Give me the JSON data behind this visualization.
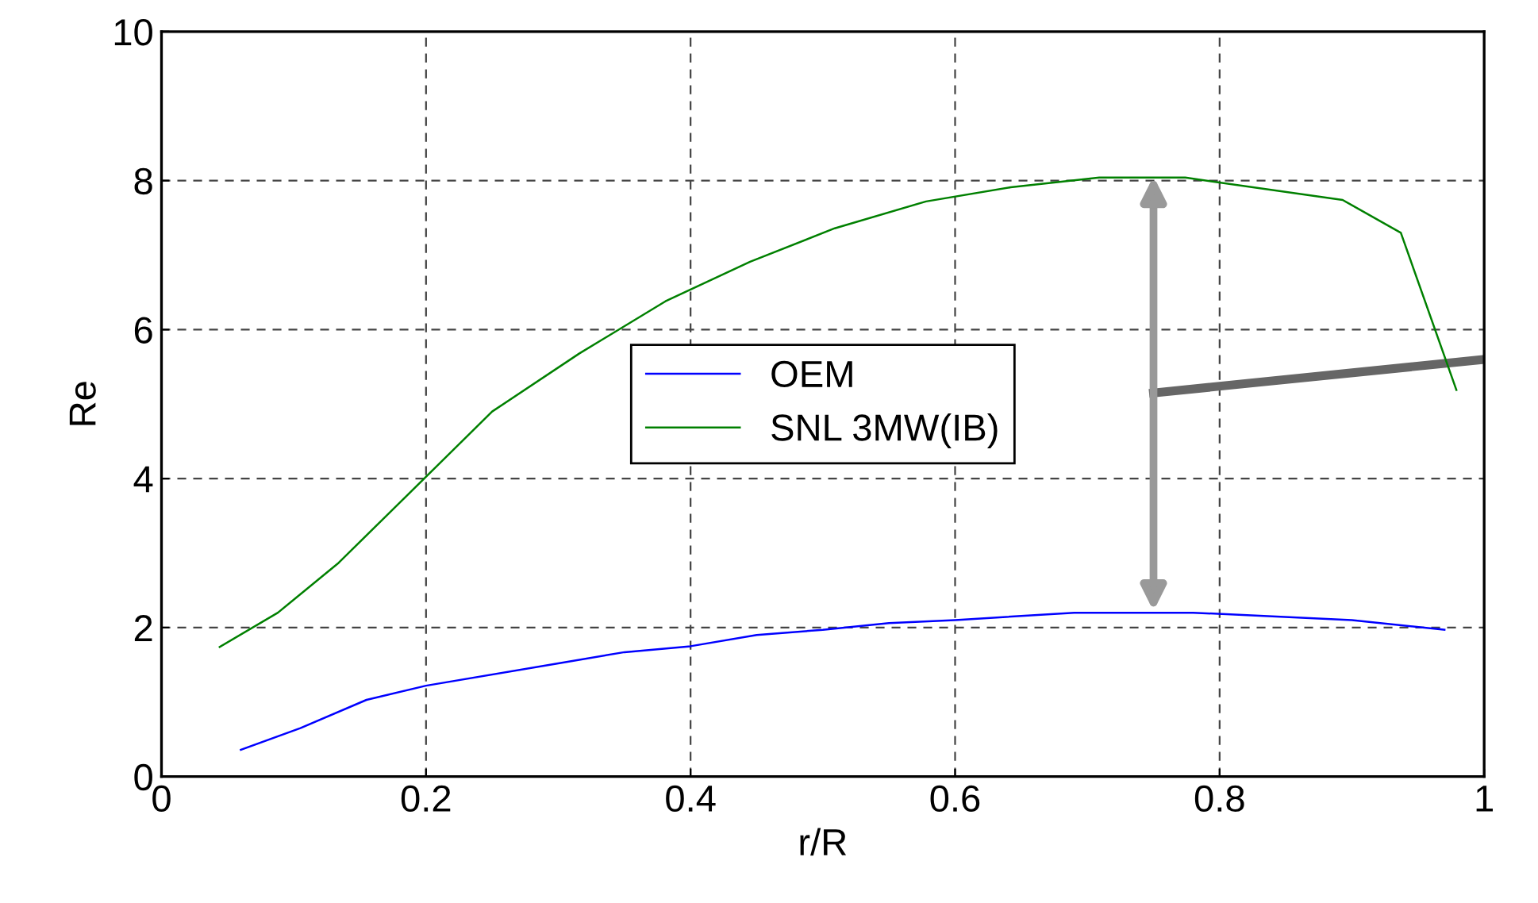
{
  "chart_data": {
    "type": "line",
    "xlabel": "r/R",
    "ylabel": "Re",
    "xlim": [
      0,
      1
    ],
    "xticks": [
      0,
      0.2,
      0.4,
      0.6,
      0.8,
      1
    ],
    "ylim": [
      0,
      10
    ],
    "yticks": [
      0,
      2,
      4,
      6,
      8,
      10
    ],
    "grid": true,
    "legend": "center",
    "line_style": "solid",
    "series": [
      {
        "name": "OEM",
        "color": "#0000ff",
        "x": [
          0.06,
          0.105,
          0.155,
          0.2,
          0.3,
          0.35,
          0.4,
          0.45,
          0.5,
          0.55,
          0.6,
          0.69,
          0.78,
          0.9,
          0.97
        ],
        "values": [
          0.36,
          0.65,
          1.03,
          1.22,
          1.52,
          1.67,
          1.75,
          1.9,
          1.97,
          2.06,
          2.1,
          2.2,
          2.2,
          2.1,
          1.97
        ]
      },
      {
        "color": "#666666",
        "x": [
          0.75,
          1.0
        ],
        "values": [
          5.15,
          5.6
        ]
      },
      {
        "name": "SNL 3MW(IB)",
        "color": "#008000",
        "x": [
          0.044,
          0.088,
          0.134,
          0.25,
          0.316,
          0.381,
          0.445,
          0.509,
          0.578,
          0.642,
          0.709,
          0.774,
          0.893,
          0.937,
          0.979
        ],
        "values": [
          1.74,
          2.2,
          2.87,
          4.9,
          5.68,
          6.38,
          6.91,
          7.36,
          7.72,
          7.91,
          8.04,
          8.04,
          7.74,
          7.3,
          5.19
        ]
      }
    ]
  }
}
